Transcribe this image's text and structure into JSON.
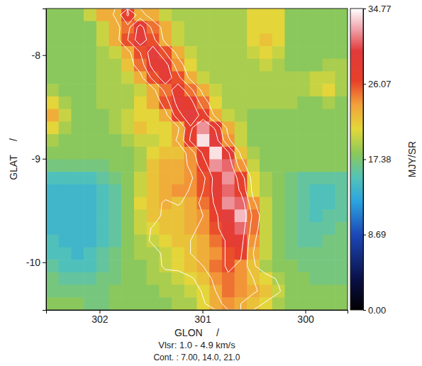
{
  "chart_data": {
    "type": "heatmap",
    "x_label": "GLON     /",
    "y_label": "GLAT     /",
    "subtitle": "Vlsr: 1.0 - 4.9 km/s",
    "annotations": [
      "Cont. : 7.00, 14.0, 21.0"
    ],
    "colorbar_label": "MJY/SR",
    "xlim": [
      302.52,
      299.59
    ],
    "ylim": [
      -10.46,
      -7.55
    ],
    "xticks": [
      302,
      301,
      300
    ],
    "yticks": [
      -8,
      -9,
      -10
    ],
    "color_range": [
      0,
      34.77
    ],
    "color_ticks": [
      {
        "value": 0,
        "label": "0.00"
      },
      8.69,
      17.38,
      26.07,
      34.77
    ],
    "contour_levels": [
      7,
      14,
      21
    ],
    "cells": [
      [
        18,
        18,
        18,
        20,
        23,
        23,
        27,
        23,
        23,
        20,
        19,
        19,
        19,
        19,
        19,
        19,
        21,
        21,
        21,
        18,
        18,
        18,
        18,
        18
      ],
      [
        18,
        18,
        18,
        18,
        20,
        23,
        25,
        29,
        25,
        23,
        20,
        19,
        19,
        19,
        19,
        19,
        21,
        21,
        21,
        18,
        18,
        18,
        18,
        18
      ],
      [
        18,
        18,
        18,
        18,
        20,
        23,
        26,
        30,
        26,
        23,
        20,
        19,
        19,
        19,
        19,
        19,
        21,
        22,
        21,
        18,
        18,
        18,
        18,
        18
      ],
      [
        18,
        18,
        18,
        18,
        19,
        20,
        23,
        26,
        30,
        26,
        23,
        20,
        19,
        19,
        19,
        19,
        20,
        21,
        20,
        18,
        18,
        18,
        18,
        18
      ],
      [
        18,
        18,
        18,
        18,
        19,
        19,
        22,
        25,
        29,
        29,
        24,
        21,
        19,
        19,
        19,
        19,
        19,
        20,
        19,
        18,
        18,
        18,
        19,
        19
      ],
      [
        18,
        18,
        18,
        18,
        19,
        19,
        20,
        23,
        26,
        29,
        26,
        23,
        20,
        19,
        19,
        19,
        19,
        19,
        19,
        19,
        19,
        20,
        20,
        19
      ],
      [
        19,
        18,
        18,
        18,
        19,
        19,
        19,
        20,
        23,
        25,
        28,
        25,
        23,
        20,
        19,
        19,
        19,
        19,
        19,
        19,
        19,
        20,
        21,
        19
      ],
      [
        21,
        19,
        18,
        18,
        19,
        19,
        19,
        21,
        23,
        26,
        29,
        28,
        25,
        21,
        19,
        19,
        19,
        19,
        19,
        19,
        18,
        18,
        19,
        18
      ],
      [
        23,
        20,
        18,
        18,
        18,
        19,
        20,
        21,
        21,
        23,
        27,
        30,
        27,
        23,
        20,
        19,
        18,
        18,
        18,
        18,
        18,
        18,
        18,
        18
      ],
      [
        21,
        19,
        18,
        18,
        18,
        19,
        20,
        22,
        21,
        21,
        23,
        27,
        32,
        28,
        23,
        20,
        18,
        18,
        18,
        18,
        18,
        18,
        18,
        18
      ],
      [
        19,
        18,
        18,
        18,
        18,
        18,
        19,
        20,
        20,
        21,
        23,
        27,
        34,
        30,
        24,
        20,
        18,
        18,
        18,
        18,
        18,
        18,
        18,
        18
      ],
      [
        18,
        18,
        18,
        18,
        18,
        18,
        18,
        19,
        21,
        22,
        22,
        24,
        28,
        34,
        29,
        22,
        19,
        18,
        18,
        18,
        18,
        18,
        18,
        18
      ],
      [
        17,
        17,
        17,
        17,
        17,
        18,
        18,
        19,
        22,
        23,
        23,
        24,
        27,
        32,
        31,
        24,
        20,
        18,
        18,
        18,
        18,
        18,
        18,
        18
      ],
      [
        15,
        15,
        15,
        15,
        16,
        17,
        18,
        20,
        22,
        23,
        23,
        24,
        26,
        29,
        32,
        27,
        21,
        19,
        18,
        17,
        16,
        16,
        16,
        16
      ],
      [
        14,
        14,
        14,
        14,
        15,
        16,
        18,
        20,
        22,
        23,
        24,
        24,
        26,
        29,
        31,
        27,
        21,
        19,
        18,
        17,
        16,
        15,
        15,
        16
      ],
      [
        14,
        14,
        14,
        14,
        15,
        16,
        18,
        21,
        22,
        23,
        22,
        23,
        25,
        28,
        32,
        31,
        24,
        20,
        18,
        17,
        16,
        15,
        15,
        16
      ],
      [
        14,
        14,
        14,
        14,
        15,
        16,
        18,
        20,
        22,
        22,
        22,
        23,
        24,
        27,
        30,
        33,
        25,
        20,
        18,
        17,
        16,
        15,
        16,
        16
      ],
      [
        14,
        14,
        14,
        14,
        15,
        16,
        18,
        20,
        21,
        22,
        22,
        23,
        24,
        26,
        29,
        31,
        25,
        20,
        18,
        17,
        16,
        16,
        16,
        17
      ],
      [
        15,
        14,
        14,
        14,
        15,
        16,
        18,
        19,
        20,
        21,
        22,
        22,
        23,
        25,
        28,
        29,
        24,
        20,
        18,
        17,
        16,
        16,
        17,
        17
      ],
      [
        15,
        15,
        14,
        15,
        16,
        17,
        18,
        19,
        19,
        20,
        21,
        22,
        23,
        24,
        26,
        27,
        23,
        20,
        18,
        17,
        17,
        17,
        17,
        17
      ],
      [
        16,
        15,
        15,
        15,
        16,
        17,
        18,
        18,
        19,
        20,
        21,
        22,
        23,
        25,
        26,
        24,
        22,
        19,
        18,
        18,
        17,
        17,
        17,
        17
      ],
      [
        17,
        16,
        16,
        16,
        17,
        17,
        18,
        18,
        19,
        19,
        20,
        21,
        22,
        24,
        25,
        24,
        22,
        21,
        19,
        18,
        18,
        17,
        17,
        17
      ],
      [
        17,
        17,
        17,
        17,
        17,
        18,
        18,
        18,
        18,
        19,
        19,
        20,
        21,
        23,
        25,
        24,
        23,
        22,
        20,
        18,
        18,
        18,
        18,
        18
      ],
      [
        18,
        18,
        18,
        17,
        17,
        18,
        18,
        18,
        18,
        18,
        19,
        19,
        21,
        23,
        24,
        23,
        22,
        21,
        19,
        18,
        18,
        18,
        18,
        18
      ]
    ],
    "contour_cells": [
      [
        2,
        2,
        2,
        2,
        2,
        8,
        22,
        10,
        3,
        2,
        2,
        2,
        2,
        2,
        2,
        2,
        2,
        2,
        2,
        2,
        2,
        2,
        2,
        2
      ],
      [
        2,
        2,
        2,
        2,
        2,
        4,
        12,
        24,
        12,
        4,
        2,
        2,
        2,
        2,
        2,
        2,
        2,
        2,
        2,
        2,
        2,
        2,
        2,
        2
      ],
      [
        2,
        2,
        2,
        2,
        2,
        4,
        14,
        26,
        16,
        5,
        2,
        2,
        2,
        2,
        2,
        2,
        2,
        2,
        2,
        2,
        2,
        2,
        2,
        2
      ],
      [
        2,
        2,
        2,
        2,
        2,
        2,
        5,
        14,
        26,
        14,
        5,
        2,
        2,
        2,
        2,
        2,
        2,
        2,
        2,
        2,
        2,
        2,
        2,
        2
      ],
      [
        2,
        2,
        2,
        2,
        2,
        2,
        4,
        10,
        24,
        24,
        10,
        3,
        2,
        2,
        2,
        2,
        2,
        2,
        2,
        2,
        2,
        2,
        2,
        2
      ],
      [
        2,
        2,
        2,
        2,
        2,
        2,
        2,
        5,
        16,
        26,
        16,
        5,
        2,
        2,
        2,
        2,
        2,
        2,
        2,
        2,
        2,
        2,
        2,
        2
      ],
      [
        2,
        2,
        2,
        2,
        2,
        2,
        2,
        2,
        5,
        16,
        26,
        16,
        5,
        2,
        2,
        2,
        2,
        2,
        2,
        2,
        2,
        2,
        2,
        2
      ],
      [
        2,
        2,
        2,
        2,
        2,
        2,
        2,
        2,
        2,
        10,
        24,
        24,
        10,
        3,
        2,
        2,
        2,
        2,
        2,
        2,
        2,
        2,
        2,
        2
      ],
      [
        2,
        2,
        2,
        2,
        2,
        2,
        2,
        2,
        2,
        5,
        18,
        27,
        18,
        5,
        2,
        2,
        2,
        2,
        2,
        2,
        2,
        2,
        2,
        2
      ],
      [
        2,
        2,
        2,
        2,
        2,
        2,
        2,
        2,
        2,
        2,
        6,
        20,
        27,
        20,
        5,
        2,
        2,
        2,
        2,
        2,
        2,
        2,
        2,
        2
      ],
      [
        2,
        2,
        2,
        2,
        2,
        2,
        2,
        2,
        2,
        2,
        8,
        22,
        28,
        24,
        8,
        2,
        2,
        2,
        2,
        2,
        2,
        2,
        2,
        2
      ],
      [
        2,
        2,
        2,
        2,
        2,
        2,
        2,
        2,
        2,
        2,
        2,
        10,
        22,
        28,
        22,
        6,
        2,
        2,
        2,
        2,
        2,
        2,
        2,
        2
      ],
      [
        2,
        2,
        2,
        2,
        2,
        2,
        2,
        2,
        2,
        2,
        4,
        8,
        18,
        27,
        26,
        10,
        2,
        2,
        2,
        2,
        2,
        2,
        2,
        2
      ],
      [
        2,
        2,
        2,
        2,
        2,
        2,
        2,
        2,
        2,
        2,
        2,
        6,
        12,
        24,
        28,
        18,
        4,
        2,
        2,
        2,
        2,
        2,
        2,
        2
      ],
      [
        2,
        2,
        2,
        2,
        2,
        2,
        2,
        2,
        2,
        2,
        2,
        8,
        14,
        24,
        28,
        20,
        5,
        2,
        2,
        2,
        2,
        2,
        2,
        2
      ],
      [
        2,
        2,
        2,
        2,
        2,
        2,
        2,
        2,
        2,
        9,
        6,
        10,
        16,
        22,
        28,
        26,
        8,
        2,
        2,
        2,
        2,
        2,
        2,
        2
      ],
      [
        2,
        2,
        2,
        2,
        2,
        2,
        2,
        2,
        2,
        10,
        12,
        9,
        14,
        20,
        26,
        28,
        12,
        2,
        2,
        2,
        2,
        2,
        2,
        2
      ],
      [
        2,
        2,
        2,
        2,
        2,
        2,
        2,
        2,
        8,
        12,
        10,
        12,
        16,
        20,
        24,
        26,
        10,
        2,
        2,
        2,
        2,
        2,
        2,
        2
      ],
      [
        2,
        2,
        2,
        2,
        2,
        2,
        2,
        2,
        9,
        11,
        12,
        14,
        16,
        18,
        22,
        24,
        8,
        2,
        2,
        2,
        2,
        2,
        2,
        2
      ],
      [
        2,
        2,
        2,
        2,
        2,
        2,
        2,
        2,
        2,
        10,
        12,
        14,
        16,
        18,
        22,
        22,
        7,
        2,
        2,
        2,
        2,
        2,
        2,
        2
      ],
      [
        2,
        2,
        2,
        2,
        2,
        2,
        2,
        2,
        2,
        9,
        10,
        12,
        14,
        18,
        22,
        20,
        8,
        2,
        2,
        2,
        2,
        2,
        2,
        2
      ],
      [
        2,
        2,
        2,
        2,
        2,
        2,
        2,
        2,
        2,
        2,
        2,
        6,
        10,
        16,
        20,
        18,
        14,
        10,
        6,
        2,
        2,
        2,
        2,
        2
      ],
      [
        2,
        2,
        2,
        2,
        2,
        2,
        2,
        2,
        2,
        2,
        2,
        2,
        8,
        14,
        18,
        16,
        15,
        12,
        8,
        2,
        2,
        2,
        2,
        2
      ],
      [
        2,
        2,
        2,
        2,
        2,
        2,
        2,
        2,
        2,
        2,
        2,
        2,
        6,
        12,
        16,
        14,
        10,
        6,
        2,
        2,
        2,
        2,
        2,
        2
      ]
    ]
  }
}
